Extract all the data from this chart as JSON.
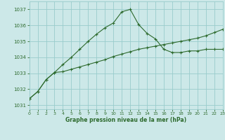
{
  "title": "Graphe pression niveau de la mer (hPa)",
  "bg_color": "#cce8e8",
  "grid_color": "#99cccc",
  "line_color": "#2d6a2d",
  "xlim": [
    0,
    23
  ],
  "ylim": [
    1030.75,
    1037.5
  ],
  "ytick_vals": [
    1031,
    1032,
    1033,
    1034,
    1035,
    1036,
    1037
  ],
  "xtick_vals": [
    0,
    1,
    2,
    3,
    4,
    5,
    6,
    7,
    8,
    9,
    10,
    11,
    12,
    13,
    14,
    15,
    16,
    17,
    18,
    19,
    20,
    21,
    22,
    23
  ],
  "trend_x": [
    0,
    1,
    2,
    3,
    4,
    5,
    6,
    7,
    8,
    9,
    10,
    11,
    12,
    13,
    14,
    15,
    16,
    17,
    18,
    19,
    20,
    21,
    22,
    23
  ],
  "trend_y": [
    1031.4,
    1031.85,
    1032.6,
    1033.05,
    1033.1,
    1033.25,
    1033.4,
    1033.55,
    1033.7,
    1033.85,
    1034.05,
    1034.2,
    1034.35,
    1034.5,
    1034.6,
    1034.7,
    1034.8,
    1034.9,
    1035.0,
    1035.1,
    1035.2,
    1035.35,
    1035.55,
    1035.75
  ],
  "peak_x": [
    0,
    1,
    2,
    3,
    4,
    5,
    6,
    7,
    8,
    9,
    10,
    11,
    12,
    13,
    14,
    15,
    16,
    17,
    18,
    19,
    20,
    21,
    22,
    23
  ],
  "peak_y": [
    1031.4,
    1031.85,
    1032.6,
    1033.05,
    1033.55,
    1034.0,
    1034.5,
    1035.0,
    1035.45,
    1035.85,
    1036.15,
    1036.85,
    1037.0,
    1036.05,
    1035.5,
    1035.15,
    1034.5,
    1034.3,
    1034.3,
    1034.4,
    1034.4,
    1034.5,
    1034.5,
    1034.5
  ]
}
